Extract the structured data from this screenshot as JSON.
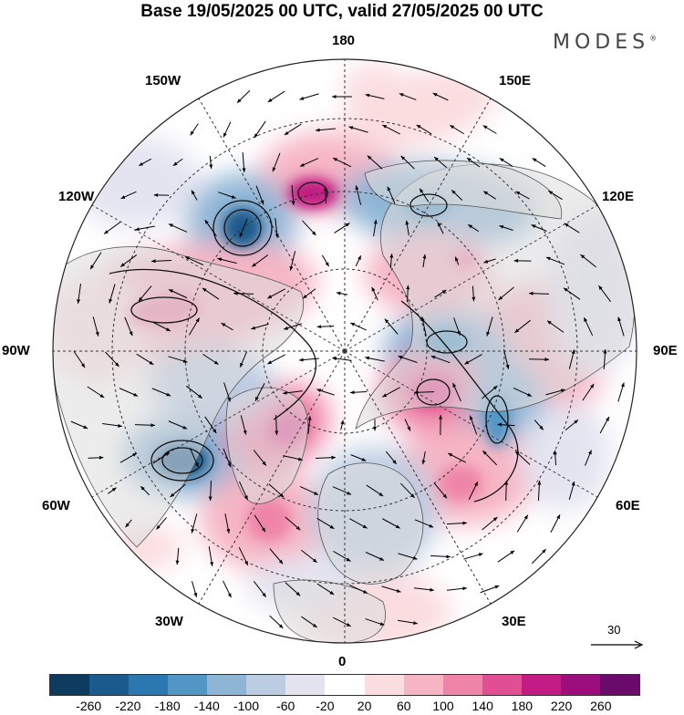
{
  "header": {
    "title": "Base 19/05/2025 00 UTC, valid 27/05/2025 00 UTC",
    "brand": "MODES",
    "brand_mark": "®"
  },
  "map": {
    "projection": "north-polar-stereographic",
    "longitude_labels": {
      "top": "180",
      "bottom": "0",
      "left": "90W",
      "right": "90E",
      "upper_left_1": "150W",
      "upper_left_2": "120W",
      "upper_right_1": "150E",
      "upper_right_2": "120E",
      "lower_left_1": "60W",
      "lower_left_2": "30W",
      "lower_right_1": "60E",
      "lower_right_2": "30E"
    },
    "reference_vector": {
      "label": "30"
    }
  },
  "colorbar": {
    "colors": [
      "#0d3a5f",
      "#1a5a8c",
      "#2b77b0",
      "#5196c5",
      "#8eb5d6",
      "#bccde3",
      "#e3e4f0",
      "#ffffff",
      "#fbdde0",
      "#f6b5c4",
      "#ee85a8",
      "#e04f94",
      "#c21b83",
      "#9c0e7b",
      "#6a0b6b"
    ],
    "tick_labels": [
      "-260",
      "-220",
      "-180",
      "-140",
      "-100",
      "-60",
      "-20",
      "20",
      "60",
      "100",
      "140",
      "180",
      "220",
      "260"
    ]
  }
}
